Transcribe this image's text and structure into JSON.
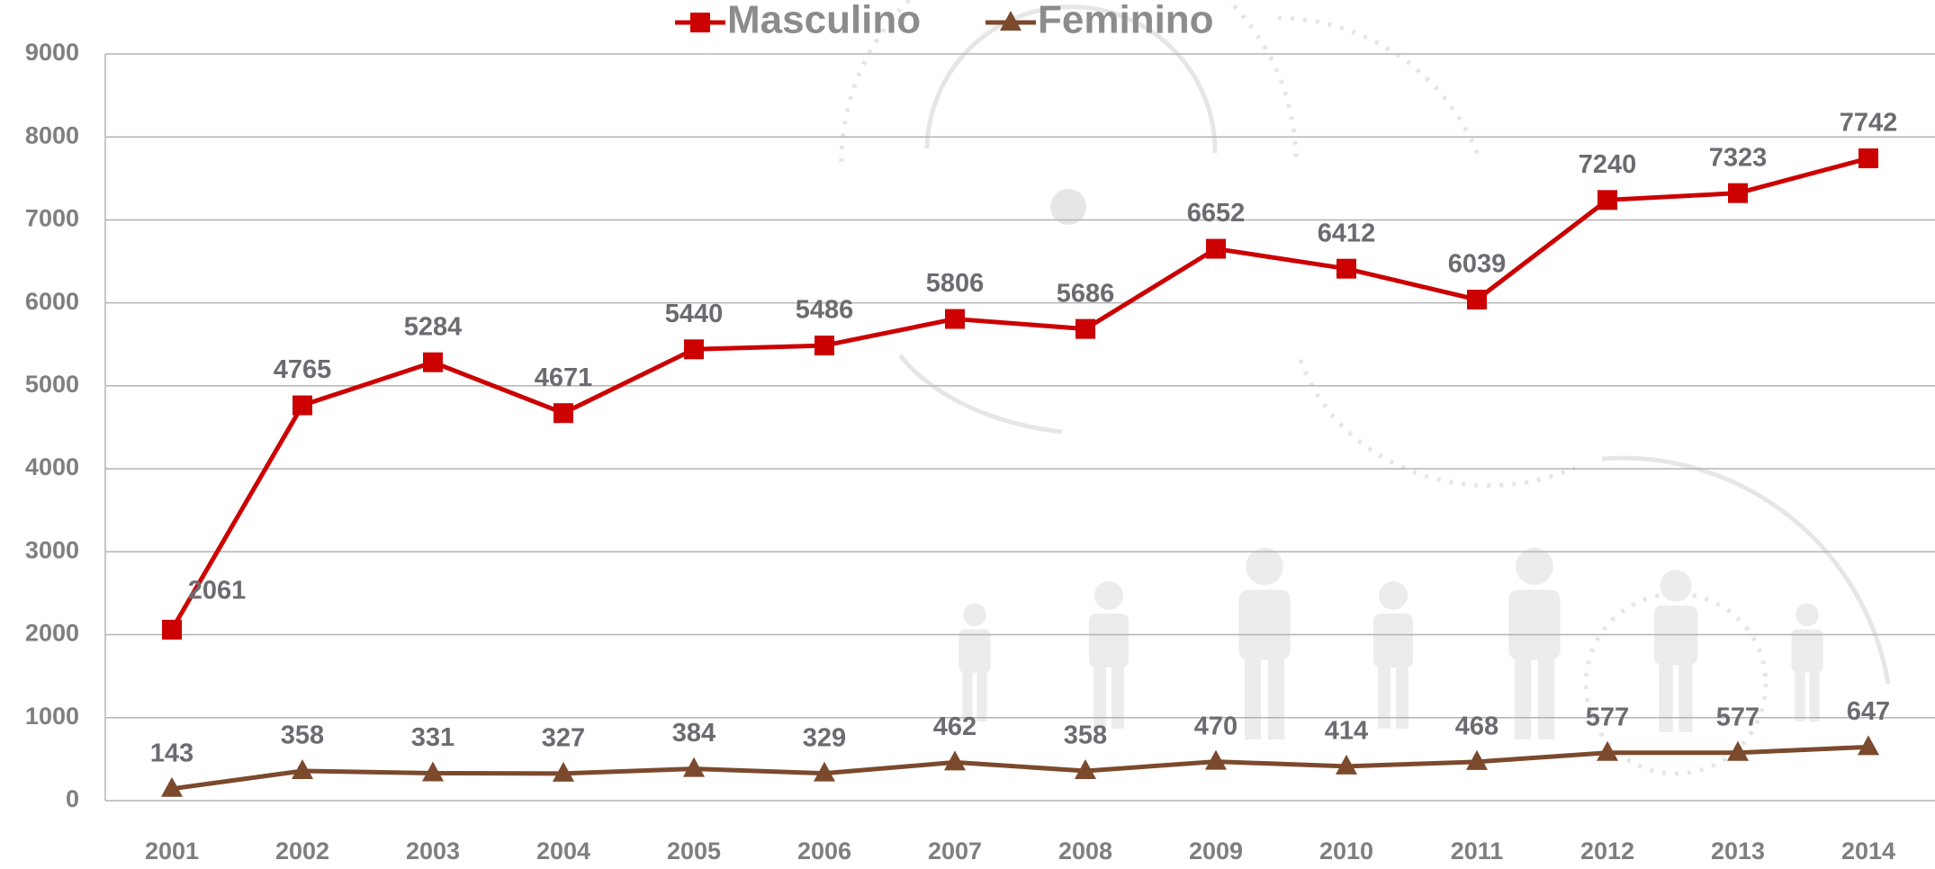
{
  "chart_data": {
    "type": "line",
    "categories": [
      "2001",
      "2002",
      "2003",
      "2004",
      "2005",
      "2006",
      "2007",
      "2008",
      "2009",
      "2010",
      "2011",
      "2012",
      "2013",
      "2014"
    ],
    "series": [
      {
        "name": "Masculino",
        "color": "#cc0000",
        "marker": "square",
        "values": [
          2061,
          4765,
          5284,
          4671,
          5440,
          5486,
          5806,
          5686,
          6652,
          6412,
          6039,
          7240,
          7323,
          7742
        ]
      },
      {
        "name": "Feminino",
        "color": "#7b4a2d",
        "marker": "triangle",
        "values": [
          143,
          358,
          331,
          327,
          384,
          329,
          462,
          358,
          470,
          414,
          468,
          577,
          577,
          647
        ]
      }
    ],
    "ylim": [
      0,
      9000
    ],
    "yticks": [
      0,
      1000,
      2000,
      3000,
      4000,
      5000,
      6000,
      7000,
      8000,
      9000
    ],
    "grid": true,
    "legend": "top"
  }
}
